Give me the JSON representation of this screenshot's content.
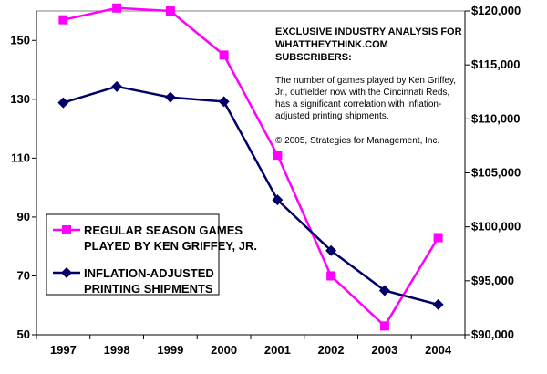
{
  "chart_data": {
    "type": "line",
    "title": "",
    "xlabel": "",
    "ylabel": "",
    "y2label": "",
    "categories": [
      "1997",
      "1998",
      "1999",
      "2000",
      "2001",
      "2002",
      "2003",
      "2004"
    ],
    "ylim": [
      50,
      160
    ],
    "y_ticks": [
      50,
      70,
      90,
      110,
      130,
      150
    ],
    "y_tick_labels": [
      "50",
      "70",
      "90",
      "110",
      "130",
      "150"
    ],
    "y2lim": [
      90000,
      120000
    ],
    "y2_ticks": [
      90000,
      95000,
      100000,
      105000,
      110000,
      115000,
      120000
    ],
    "y2_tick_labels": [
      "$90,000",
      "$95,000",
      "$100,000",
      "$105,000",
      "$110,000",
      "$115,000",
      "$120,000"
    ],
    "grid": false,
    "legend_position": "bottom-left",
    "series": [
      {
        "name": "REGULAR SEASON GAMES PLAYED BY KEN GRIFFEY, JR.",
        "name_lines": [
          "REGULAR SEASON GAMES",
          "PLAYED BY KEN GRIFFEY, JR."
        ],
        "axis": "left",
        "color": "#ff00ff",
        "marker": "square",
        "values": [
          157,
          161,
          160,
          145,
          111,
          70,
          53,
          83
        ]
      },
      {
        "name": "INFLATION-ADJUSTED PRINTING SHIPMENTS",
        "name_lines": [
          "INFLATION-ADJUSTED",
          "PRINTING SHIPMENTS"
        ],
        "axis": "right",
        "color": "#000066",
        "marker": "diamond",
        "values": [
          111500,
          113000,
          112000,
          111600,
          102500,
          97800,
          94100,
          92800
        ]
      }
    ],
    "annotations": {
      "bold_lines": [
        "EXCLUSIVE INDUSTRY ANALYSIS FOR",
        "WHATTHEYTHINK.COM",
        "SUBSCRIBERS:"
      ],
      "body_lines": [
        "The number of games played by Ken Griffey,",
        "Jr., outfielder now with the Cincinnati Reds,",
        "has a significant correlation with inflation-",
        "adjusted printing shipments."
      ],
      "copyright": "© 2005, Strategies for Management, Inc."
    }
  }
}
